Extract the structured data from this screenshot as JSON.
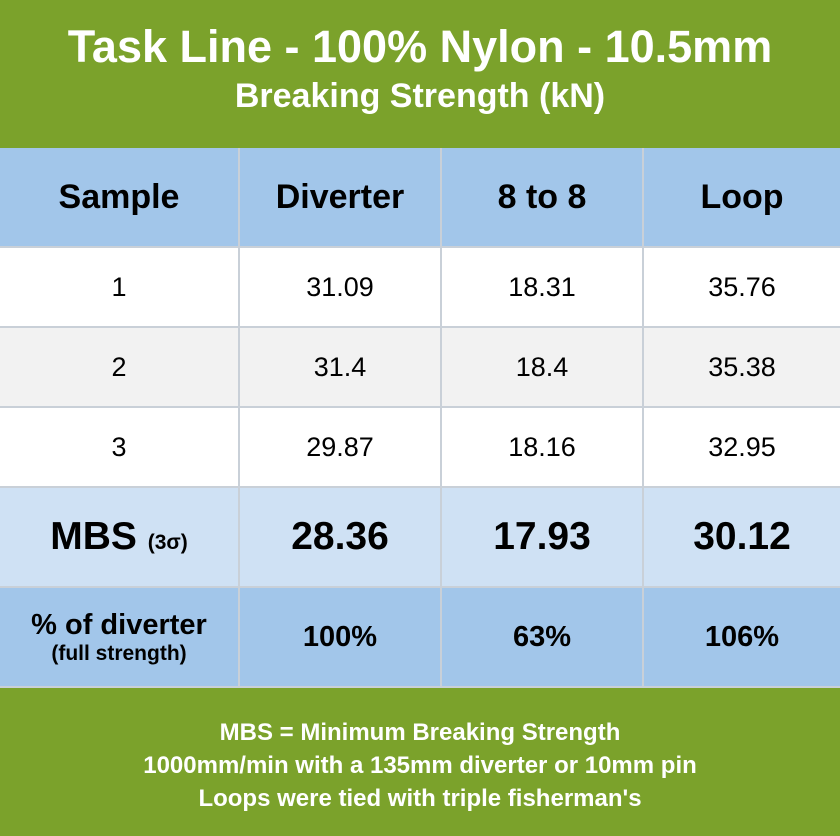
{
  "header": {
    "title": "Task Line - 100% Nylon - 10.5mm",
    "subtitle": "Breaking Strength (kN)"
  },
  "table": {
    "columns": [
      "Sample",
      "Diverter",
      "8 to 8",
      "Loop"
    ],
    "rows": [
      [
        "1",
        "31.09",
        "18.31",
        "35.76"
      ],
      [
        "2",
        "31.4",
        "18.4",
        "35.38"
      ],
      [
        "3",
        "29.87",
        "18.16",
        "32.95"
      ]
    ],
    "mbs": {
      "label": "MBS",
      "note": "(3σ)",
      "values": [
        "28.36",
        "17.93",
        "30.12"
      ]
    },
    "percent": {
      "label": "% of diverter",
      "note": "(full strength)",
      "values": [
        "100%",
        "63%",
        "106%"
      ]
    }
  },
  "footer": {
    "lines": [
      "MBS = Minimum Breaking Strength",
      "1000mm/min with a 135mm diverter or 10mm pin",
      "Loops were tied with triple fisherman's"
    ]
  }
}
